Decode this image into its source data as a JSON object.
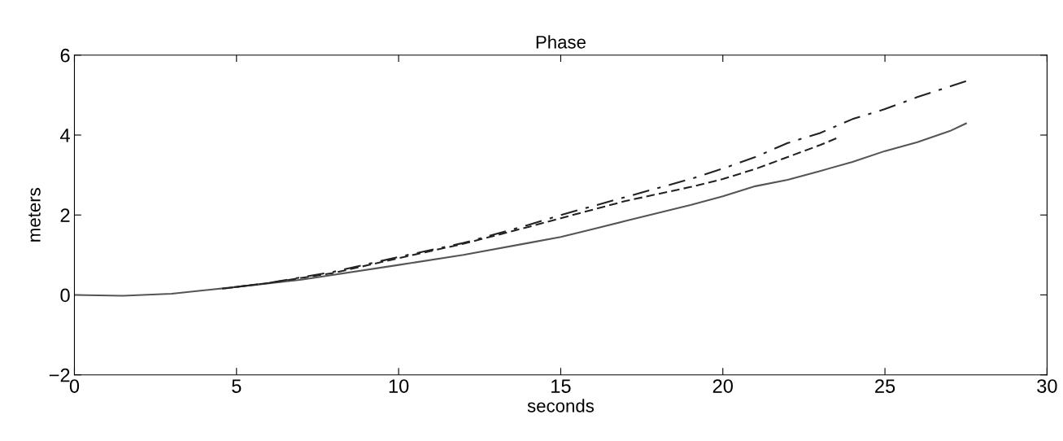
{
  "chart_data": {
    "type": "line",
    "title": "Phase",
    "xlabel": "seconds",
    "ylabel": "meters",
    "xlim": [
      0,
      30
    ],
    "ylim": [
      -2,
      6
    ],
    "xticks": [
      0,
      5,
      10,
      15,
      20,
      25,
      30
    ],
    "yticks": [
      -2,
      0,
      2,
      4,
      6
    ],
    "grid": false,
    "legend": false,
    "marker": "none",
    "series": [
      {
        "color": "#555555",
        "line_style": "solid",
        "x": [
          0,
          1.5,
          3,
          5,
          7,
          10,
          12,
          14,
          15,
          16,
          17,
          18,
          19,
          20,
          21,
          22,
          23,
          24,
          25,
          26,
          27,
          27.5
        ],
        "values": [
          0,
          -0.02,
          0.03,
          0.2,
          0.38,
          0.75,
          1.0,
          1.3,
          1.45,
          1.65,
          1.85,
          2.05,
          2.25,
          2.47,
          2.72,
          2.88,
          3.1,
          3.33,
          3.6,
          3.82,
          4.1,
          4.29
        ]
      },
      {
        "color": "#222222",
        "line_style": "dashed",
        "x": [
          4.5,
          6,
          8,
          10,
          12,
          14,
          15,
          17,
          19,
          20,
          21,
          22,
          23,
          23.5
        ],
        "values": [
          0.15,
          0.3,
          0.55,
          0.92,
          1.28,
          1.7,
          1.92,
          2.35,
          2.7,
          2.9,
          3.15,
          3.45,
          3.75,
          3.92
        ]
      },
      {
        "color": "#222222",
        "line_style": "dashdot",
        "x": [
          4.5,
          6,
          8,
          10,
          12,
          14,
          15,
          17,
          19,
          20,
          21,
          22,
          23,
          24,
          25,
          26,
          27.5
        ],
        "values": [
          0.15,
          0.3,
          0.58,
          0.95,
          1.3,
          1.75,
          2.0,
          2.45,
          2.9,
          3.16,
          3.45,
          3.8,
          4.05,
          4.4,
          4.65,
          4.95,
          5.35
        ]
      }
    ]
  }
}
